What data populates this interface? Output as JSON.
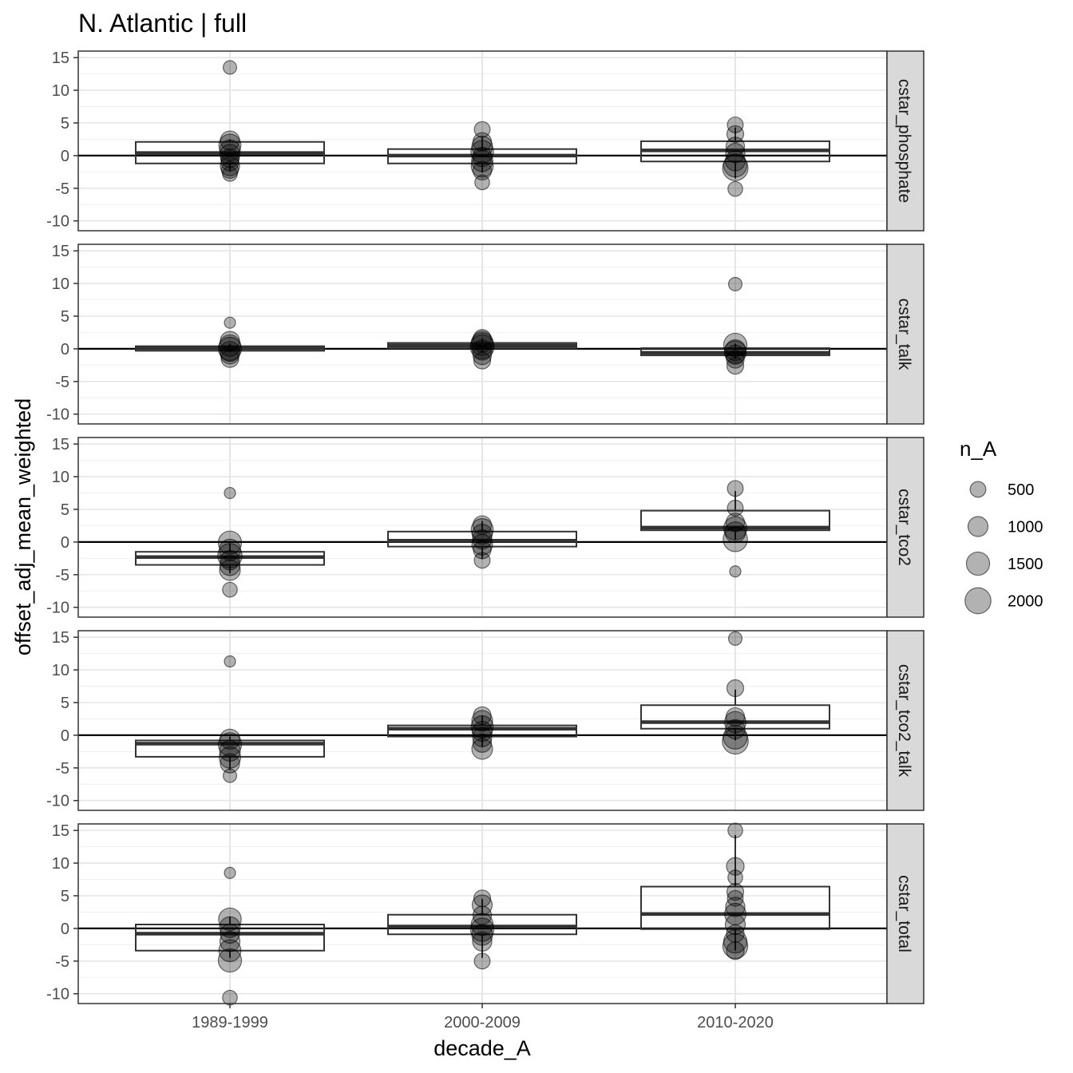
{
  "chart_data": {
    "type": "boxplot",
    "title": "N. Atlantic | full",
    "xlabel": "decade_A",
    "ylabel": "offset_adj_mean_weighted",
    "categories": [
      "1989-1999",
      "2000-2009",
      "2010-2020"
    ],
    "ylim": [
      -11.5,
      16
    ],
    "y_ticks": [
      -10,
      -5,
      0,
      5,
      10,
      15
    ],
    "y_tick_labels": [
      "-10",
      "-5",
      "0",
      "5",
      "10",
      "15"
    ],
    "grid": true,
    "legend": {
      "title": "n_A",
      "position": "right",
      "entries": [
        {
          "label": "500",
          "size": 500
        },
        {
          "label": "1000",
          "size": 1000
        },
        {
          "label": "1500",
          "size": 1500
        },
        {
          "label": "2000",
          "size": 2000
        }
      ]
    },
    "facets": [
      {
        "label": "cstar_phosphate",
        "boxes": [
          {
            "category": "1989-1999",
            "q1": -1.2,
            "median": 0.4,
            "q3": 2.1,
            "whisker_low": -2.4,
            "whisker_high": 2.5,
            "points": [
              [
                13.5,
                300
              ],
              [
                2.3,
                900
              ],
              [
                1.6,
                1300
              ],
              [
                0.8,
                1100
              ],
              [
                0.2,
                1000
              ],
              [
                -0.4,
                800
              ],
              [
                -1.0,
                700
              ],
              [
                -1.6,
                900
              ],
              [
                -2.2,
                600
              ],
              [
                -2.8,
                400
              ]
            ]
          },
          {
            "category": "2000-2009",
            "q1": -1.2,
            "median": 0.0,
            "q3": 1.0,
            "whisker_low": -2.6,
            "whisker_high": 2.8,
            "points": [
              [
                4.0,
                500
              ],
              [
                2.1,
                800
              ],
              [
                1.4,
                1100
              ],
              [
                0.6,
                1400
              ],
              [
                -0.2,
                900
              ],
              [
                -0.8,
                1200
              ],
              [
                -1.6,
                1300
              ],
              [
                -2.3,
                800
              ],
              [
                -4.1,
                400
              ]
            ]
          },
          {
            "category": "2010-2020",
            "q1": -0.9,
            "median": 0.8,
            "q3": 2.2,
            "whisker_low": -3.5,
            "whisker_high": 4.3,
            "points": [
              [
                4.7,
                500
              ],
              [
                3.3,
                600
              ],
              [
                1.4,
                800
              ],
              [
                0.4,
                900
              ],
              [
                -0.8,
                1000
              ],
              [
                -1.5,
                1500
              ],
              [
                -1.9,
                1900
              ],
              [
                -5.1,
                400
              ]
            ]
          }
        ]
      },
      {
        "label": "cstar_talk",
        "boxes": [
          {
            "category": "1989-1999",
            "q1": -0.3,
            "median": 0.1,
            "q3": 0.4,
            "whisker_low": -0.5,
            "whisker_high": 0.8,
            "points": [
              [
                4.0,
                150
              ],
              [
                1.2,
                900
              ],
              [
                0.5,
                1200
              ],
              [
                0.0,
                1500
              ],
              [
                -0.4,
                1000
              ],
              [
                -0.9,
                800
              ],
              [
                -1.5,
                700
              ]
            ]
          },
          {
            "category": "2000-2009",
            "q1": 0.1,
            "median": 0.5,
            "q3": 0.9,
            "whisker_low": -0.5,
            "whisker_high": 1.6,
            "points": [
              [
                1.6,
                700
              ],
              [
                1.1,
                1100
              ],
              [
                0.7,
                1400
              ],
              [
                0.3,
                1600
              ],
              [
                -0.2,
                1000
              ],
              [
                -1.0,
                800
              ],
              [
                -1.8,
                600
              ]
            ]
          },
          {
            "category": "2010-2020",
            "q1": -1.0,
            "median": -0.6,
            "q3": 0.1,
            "whisker_low": -1.5,
            "whisker_high": 0.8,
            "points": [
              [
                9.9,
                300
              ],
              [
                0.6,
                1500
              ],
              [
                -0.2,
                1100
              ],
              [
                -0.5,
                1300
              ],
              [
                -0.9,
                900
              ],
              [
                -1.6,
                700
              ],
              [
                -2.6,
                600
              ]
            ]
          }
        ]
      },
      {
        "label": "cstar_tco2",
        "boxes": [
          {
            "category": "1989-1999",
            "q1": -3.5,
            "median": -2.3,
            "q3": -1.5,
            "whisker_low": -4.8,
            "whisker_high": -0.2,
            "points": [
              [
                7.5,
                150
              ],
              [
                -0.1,
                1500
              ],
              [
                -1.2,
                1200
              ],
              [
                -2.1,
                1700
              ],
              [
                -2.8,
                900
              ],
              [
                -3.6,
                1000
              ],
              [
                -4.3,
                1100
              ],
              [
                -7.3,
                400
              ]
            ]
          },
          {
            "category": "2000-2009",
            "q1": -0.7,
            "median": 0.2,
            "q3": 1.6,
            "whisker_low": -2.6,
            "whisker_high": 3.2,
            "points": [
              [
                2.6,
                800
              ],
              [
                1.9,
                1300
              ],
              [
                1.2,
                1000
              ],
              [
                0.4,
                900
              ],
              [
                -0.4,
                1100
              ],
              [
                -1.2,
                700
              ],
              [
                -2.8,
                500
              ]
            ]
          },
          {
            "category": "2010-2020",
            "q1": 1.8,
            "median": 2.2,
            "q3": 4.8,
            "whisker_low": 0.4,
            "whisker_high": 7.8,
            "points": [
              [
                8.2,
                500
              ],
              [
                5.2,
                500
              ],
              [
                3.0,
                800
              ],
              [
                2.1,
                1500
              ],
              [
                1.5,
                1100
              ],
              [
                0.4,
                1700
              ],
              [
                -4.5,
                150
              ]
            ]
          }
        ]
      },
      {
        "label": "cstar_tco2_talk",
        "boxes": [
          {
            "category": "1989-1999",
            "q1": -3.3,
            "median": -1.3,
            "q3": -0.8,
            "whisker_low": -5.3,
            "whisker_high": -0.2,
            "points": [
              [
                11.3,
                150
              ],
              [
                -0.6,
                1000
              ],
              [
                -1.4,
                1500
              ],
              [
                -2.4,
                1100
              ],
              [
                -3.4,
                1200
              ],
              [
                -4.3,
                900
              ],
              [
                -6.2,
                300
              ]
            ]
          },
          {
            "category": "2000-2009",
            "q1": -0.2,
            "median": 1.0,
            "q3": 1.5,
            "whisker_low": -1.8,
            "whisker_high": 3.0,
            "points": [
              [
                3.0,
                700
              ],
              [
                2.2,
                1100
              ],
              [
                1.3,
                1300
              ],
              [
                0.6,
                1000
              ],
              [
                -0.3,
                900
              ],
              [
                -1.2,
                800
              ],
              [
                -2.1,
                1100
              ]
            ]
          },
          {
            "category": "2010-2020",
            "q1": 1.0,
            "median": 2.0,
            "q3": 4.6,
            "whisker_low": -0.8,
            "whisker_high": 7.0,
            "points": [
              [
                14.8,
                300
              ],
              [
                7.2,
                600
              ],
              [
                2.8,
                800
              ],
              [
                2.0,
                1200
              ],
              [
                0.9,
                900
              ],
              [
                -0.3,
                1600
              ],
              [
                -0.9,
                2000
              ]
            ]
          }
        ]
      },
      {
        "label": "cstar_total",
        "boxes": [
          {
            "category": "1989-1999",
            "q1": -3.4,
            "median": -0.8,
            "q3": 0.6,
            "whisker_low": -4.5,
            "whisker_high": 1.8,
            "points": [
              [
                8.5,
                150
              ],
              [
                1.4,
                1400
              ],
              [
                0.2,
                1100
              ],
              [
                -0.8,
                900
              ],
              [
                -2.0,
                1000
              ],
              [
                -3.4,
                1300
              ],
              [
                -4.9,
                1500
              ],
              [
                -10.6,
                400
              ]
            ]
          },
          {
            "category": "2000-2009",
            "q1": -0.9,
            "median": 0.3,
            "q3": 2.1,
            "whisker_low": -4.5,
            "whisker_high": 4.5,
            "points": [
              [
                4.6,
                600
              ],
              [
                3.6,
                1000
              ],
              [
                2.0,
                800
              ],
              [
                0.6,
                1300
              ],
              [
                -0.2,
                1500
              ],
              [
                -1.0,
                1100
              ],
              [
                -2.0,
                900
              ],
              [
                -5.0,
                500
              ]
            ]
          },
          {
            "category": "2010-2020",
            "q1": -0.1,
            "median": 2.2,
            "q3": 6.4,
            "whisker_low": -3.4,
            "whisker_high": 14.3,
            "points": [
              [
                15.0,
                400
              ],
              [
                9.5,
                700
              ],
              [
                7.8,
                400
              ],
              [
                5.6,
                600
              ],
              [
                4.6,
                500
              ],
              [
                3.3,
                900
              ],
              [
                2.2,
                1200
              ],
              [
                0.6,
                1000
              ],
              [
                -0.8,
                700
              ],
              [
                -2.0,
                1500
              ],
              [
                -2.7,
                1800
              ],
              [
                -3.4,
                700
              ]
            ]
          }
        ]
      }
    ]
  }
}
